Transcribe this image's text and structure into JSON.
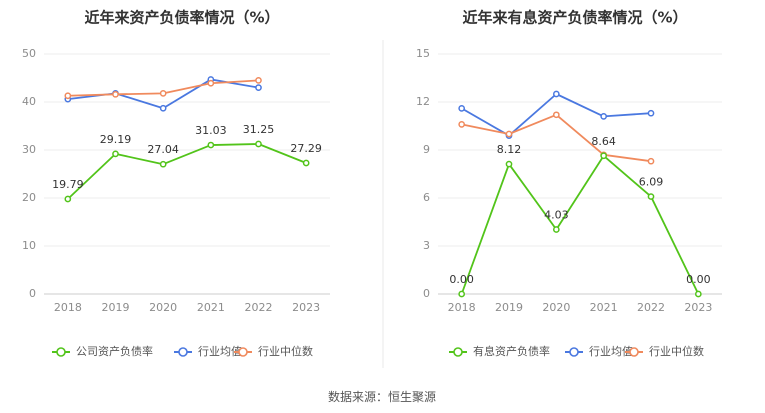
{
  "source_text": "数据来源：恒生聚源",
  "chart_data": [
    {
      "type": "line",
      "title": "近年来资产负债率情况（%）",
      "categories": [
        "2018",
        "2019",
        "2020",
        "2021",
        "2022",
        "2023"
      ],
      "ylim": [
        0,
        50
      ],
      "yticks": [
        0,
        10,
        20,
        30,
        40,
        50
      ],
      "ytick_labels": [
        "0",
        "10",
        "20",
        "30",
        "40",
        "50"
      ],
      "grid": true,
      "legend_position": "bottom",
      "series": [
        {
          "name": "公司资产负债率",
          "color": "#52c41a",
          "values": [
            19.79,
            29.19,
            27.04,
            31.03,
            31.25,
            27.29
          ],
          "labels": [
            "19.79",
            "29.19",
            "27.04",
            "31.03",
            "31.25",
            "27.29"
          ]
        },
        {
          "name": "行业均值",
          "color": "#4a78e0",
          "values": [
            40.6,
            41.8,
            38.7,
            44.7,
            43.0,
            null
          ]
        },
        {
          "name": "行业中位数",
          "color": "#f08a5d",
          "values": [
            41.3,
            41.6,
            41.8,
            43.9,
            44.5,
            null
          ]
        }
      ]
    },
    {
      "type": "line",
      "title": "近年来有息资产负债率情况（%）",
      "categories": [
        "2018",
        "2019",
        "2020",
        "2021",
        "2022",
        "2023"
      ],
      "ylim": [
        0,
        15
      ],
      "yticks": [
        0,
        3,
        6,
        9,
        12,
        15
      ],
      "ytick_labels": [
        "0",
        "3",
        "6",
        "9",
        "12",
        "15"
      ],
      "grid": true,
      "legend_position": "bottom",
      "series": [
        {
          "name": "有息资产负债率",
          "color": "#52c41a",
          "values": [
            0.0,
            8.12,
            4.03,
            8.64,
            6.09,
            0.0
          ],
          "labels": [
            "0.00",
            "8.12",
            "4.03",
            "8.64",
            "6.09",
            "0.00"
          ]
        },
        {
          "name": "行业均值",
          "color": "#4a78e0",
          "values": [
            11.6,
            9.9,
            12.5,
            11.1,
            11.3,
            null
          ]
        },
        {
          "name": "行业中位数",
          "color": "#f08a5d",
          "values": [
            10.6,
            10.0,
            11.2,
            8.7,
            8.3,
            null
          ]
        }
      ]
    }
  ]
}
